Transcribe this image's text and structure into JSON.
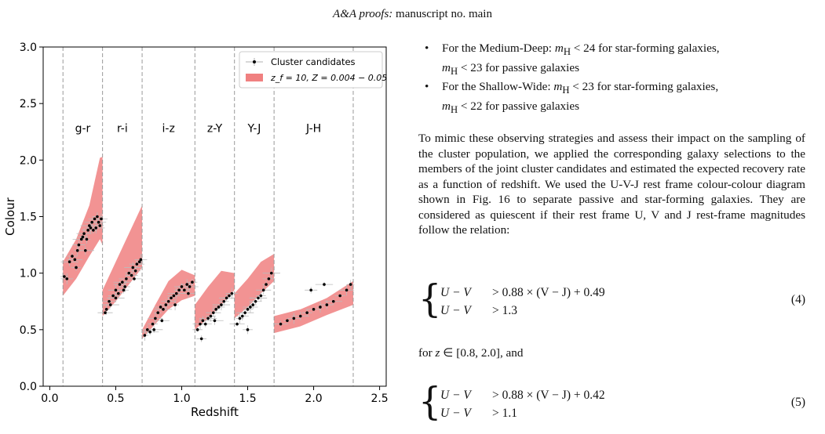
{
  "header": {
    "journal": "A&A proofs:",
    "rest": " manuscript no. main"
  },
  "figure": {
    "chart_data": {
      "type": "scatter",
      "xlabel": "Redshift",
      "ylabel": "Colour",
      "xlim": [
        -0.05,
        2.55
      ],
      "ylim": [
        0.0,
        3.0
      ],
      "xticks": [
        "0.0",
        "0.5",
        "1.0",
        "1.5",
        "2.0",
        "2.5"
      ],
      "yticks": [
        "0.0",
        "0.5",
        "1.0",
        "1.5",
        "2.0",
        "2.5",
        "3.0"
      ],
      "grid": false,
      "legend_placement": "top-right",
      "legend": [
        "Cluster candidates",
        "z_f = 10, Z = 0.004 − 0.05"
      ],
      "band_boundaries": [
        0.1,
        0.4,
        0.7,
        1.1,
        1.4,
        1.7,
        2.3
      ],
      "band_labels": [
        {
          "text": "g-r",
          "x": 0.25
        },
        {
          "text": "r-i",
          "x": 0.55
        },
        {
          "text": "i-z",
          "x": 0.9
        },
        {
          "text": "z-Y",
          "x": 1.25
        },
        {
          "text": "Y-J",
          "x": 1.55
        },
        {
          "text": "J-H",
          "x": 2.0
        }
      ],
      "band_label_y": 2.25,
      "model_regions": [
        {
          "x": [
            0.1,
            0.2,
            0.3,
            0.38,
            0.4
          ],
          "lower": [
            0.8,
            0.95,
            1.15,
            1.3,
            1.25
          ],
          "upper": [
            1.1,
            1.3,
            1.6,
            2.02,
            2.03
          ]
        },
        {
          "x": [
            0.4,
            0.5,
            0.6,
            0.7
          ],
          "lower": [
            0.62,
            0.75,
            0.9,
            1.05
          ],
          "upper": [
            0.85,
            1.1,
            1.35,
            1.6
          ]
        },
        {
          "x": [
            0.7,
            0.8,
            0.9,
            1.0,
            1.1
          ],
          "lower": [
            0.42,
            0.55,
            0.68,
            0.76,
            0.8
          ],
          "upper": [
            0.5,
            0.72,
            0.93,
            1.03,
            0.98
          ]
        },
        {
          "x": [
            1.1,
            1.2,
            1.3,
            1.4
          ],
          "lower": [
            0.5,
            0.6,
            0.72,
            0.85
          ],
          "upper": [
            0.72,
            0.88,
            1.02,
            1.0
          ]
        },
        {
          "x": [
            1.4,
            1.5,
            1.6,
            1.7
          ],
          "lower": [
            0.6,
            0.7,
            0.82,
            0.93
          ],
          "upper": [
            0.82,
            0.95,
            1.1,
            1.17
          ]
        },
        {
          "x": [
            1.7,
            1.9,
            2.1,
            2.3
          ],
          "lower": [
            0.47,
            0.53,
            0.63,
            0.72
          ],
          "upper": [
            0.62,
            0.68,
            0.78,
            0.93
          ]
        }
      ],
      "series": [
        {
          "name": "Cluster candidates",
          "x": [
            0.11,
            0.13,
            0.15,
            0.17,
            0.19,
            0.21,
            0.22,
            0.24,
            0.25,
            0.26,
            0.28,
            0.29,
            0.3,
            0.31,
            0.32,
            0.33,
            0.34,
            0.35,
            0.36,
            0.37,
            0.38,
            0.39,
            0.27,
            0.2,
            0.42,
            0.43,
            0.45,
            0.46,
            0.48,
            0.5,
            0.52,
            0.53,
            0.55,
            0.57,
            0.58,
            0.6,
            0.62,
            0.63,
            0.65,
            0.66,
            0.68,
            0.69,
            0.5,
            0.56,
            0.64,
            0.72,
            0.74,
            0.76,
            0.78,
            0.8,
            0.82,
            0.84,
            0.86,
            0.88,
            0.9,
            0.92,
            0.94,
            0.96,
            0.98,
            1.0,
            1.02,
            1.04,
            1.06,
            1.08,
            0.85,
            0.95,
            1.05,
            0.79,
            1.12,
            1.14,
            1.16,
            1.18,
            1.2,
            1.22,
            1.24,
            1.26,
            1.28,
            1.3,
            1.32,
            1.34,
            1.36,
            1.38,
            1.25,
            1.15,
            1.42,
            1.44,
            1.46,
            1.48,
            1.5,
            1.52,
            1.54,
            1.56,
            1.58,
            1.6,
            1.62,
            1.64,
            1.66,
            1.68,
            1.5,
            1.75,
            1.8,
            1.85,
            1.9,
            1.95,
            2.0,
            2.05,
            2.1,
            2.15,
            2.2,
            2.25,
            2.28,
            1.98,
            2.08
          ],
          "y": [
            0.97,
            0.95,
            1.1,
            1.15,
            1.12,
            1.2,
            1.25,
            1.3,
            1.32,
            1.35,
            1.3,
            1.38,
            1.42,
            1.4,
            1.45,
            1.38,
            1.48,
            1.4,
            1.5,
            1.45,
            1.42,
            1.48,
            1.2,
            1.05,
            0.65,
            0.68,
            0.75,
            0.72,
            0.8,
            0.85,
            0.82,
            0.9,
            0.92,
            0.88,
            0.95,
            1.0,
            0.98,
            1.05,
            1.02,
            1.08,
            1.1,
            1.12,
            0.78,
            0.85,
            0.95,
            0.45,
            0.5,
            0.48,
            0.55,
            0.6,
            0.65,
            0.7,
            0.68,
            0.72,
            0.75,
            0.78,
            0.8,
            0.82,
            0.85,
            0.88,
            0.85,
            0.9,
            0.88,
            0.92,
            0.58,
            0.72,
            0.82,
            0.5,
            0.5,
            0.55,
            0.58,
            0.55,
            0.6,
            0.62,
            0.65,
            0.68,
            0.7,
            0.72,
            0.75,
            0.78,
            0.8,
            0.82,
            0.58,
            0.42,
            0.55,
            0.6,
            0.62,
            0.65,
            0.68,
            0.7,
            0.72,
            0.75,
            0.78,
            0.8,
            0.85,
            0.9,
            0.95,
            1.0,
            0.5,
            0.55,
            0.58,
            0.6,
            0.62,
            0.65,
            0.68,
            0.7,
            0.72,
            0.75,
            0.8,
            0.85,
            0.9,
            0.85,
            0.9
          ]
        }
      ]
    }
  },
  "bullets": [
    {
      "lead": "For the Medium-Deep: ",
      "v1": "m",
      "sub1": "H",
      "rel1": " < 24 for star-forming galaxies,",
      "v2": "m",
      "sub2": "H",
      "rel2": " < 23 for passive galaxies"
    },
    {
      "lead": "For the Shallow-Wide: ",
      "v1": "m",
      "sub1": "H",
      "rel1": " < 23 for star-forming galaxies,",
      "v2": "m",
      "sub2": "H",
      "rel2": " < 22 for passive galaxies"
    }
  ],
  "paragraph": "To mimic these observing strategies and assess their impact on the sampling of the cluster population, we applied the corresponding galaxy selections to the members of the joint cluster candidates and estimated the expected recovery rate as a function of redshift. We used the U-V-J rest frame colour-colour diagram shown in Fig. 16 to separate passive and star-forming galaxies. They are considered as quiescent if their rest frame U, V and J rest-frame magnitudes follow the relation:",
  "eq4": {
    "lhs1": "U − V",
    "rhs1": "> 0.88 × (V − J) + 0.49",
    "lhs2": "U − V",
    "rhs2": "> 1.3",
    "num": "(4)"
  },
  "between": {
    "pre": "for ",
    "var": "z",
    "post": " ∈ [0.8, 2.0], and"
  },
  "eq5": {
    "lhs1": "U − V",
    "rhs1": "> 0.88 × (V − J) + 0.42",
    "lhs2": "U − V",
    "rhs2": "> 1.1",
    "num": "(5)"
  }
}
